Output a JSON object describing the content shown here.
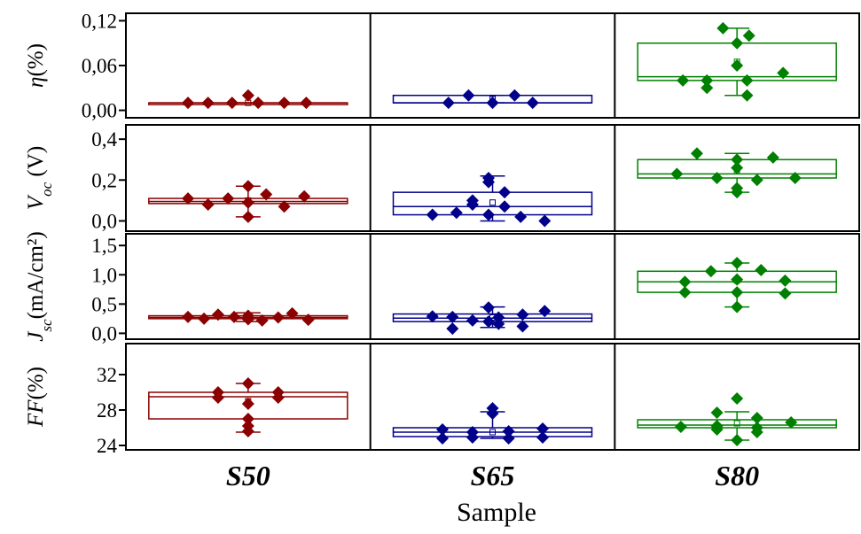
{
  "chart_data": {
    "type": "box",
    "categories": [
      "S50",
      "S65",
      "S80"
    ],
    "xlabel": "Sample",
    "colors": {
      "S50": "#8b0000",
      "S65": "#00008b",
      "S80": "#008000"
    },
    "panels": [
      {
        "key": "eta",
        "ylabel": {
          "main": "η",
          "unit": "(%)",
          "subscript": ""
        },
        "ylim": [
          -0.01,
          0.13
        ],
        "ticks": [
          0.0,
          0.06,
          0.12
        ],
        "tick_labels": [
          "0,00",
          "0,06",
          "0,12"
        ],
        "groups": [
          {
            "category": "S50",
            "q1": 0.01,
            "median": 0.01,
            "q3": 0.01,
            "mean": 0.01,
            "whisker_low": 0.01,
            "whisker_high": 0.01,
            "points": [
              [
                -0.3,
                0.01
              ],
              [
                -0.2,
                0.01
              ],
              [
                -0.08,
                0.01
              ],
              [
                0.0,
                0.02
              ],
              [
                0.05,
                0.01
              ],
              [
                0.18,
                0.01
              ],
              [
                0.29,
                0.01
              ]
            ]
          },
          {
            "category": "S65",
            "q1": 0.01,
            "median": 0.01,
            "q3": 0.02,
            "mean": 0.015,
            "whisker_low": 0.01,
            "whisker_high": 0.02,
            "points": [
              [
                -0.22,
                0.01
              ],
              [
                -0.12,
                0.02
              ],
              [
                0.0,
                0.01
              ],
              [
                0.11,
                0.02
              ],
              [
                0.2,
                0.01
              ]
            ]
          },
          {
            "category": "S80",
            "q1": 0.04,
            "median": 0.045,
            "q3": 0.09,
            "mean": 0.065,
            "whisker_low": 0.02,
            "whisker_high": 0.11,
            "points": [
              [
                -0.27,
                0.04
              ],
              [
                -0.15,
                0.03
              ],
              [
                -0.15,
                0.04
              ],
              [
                -0.07,
                0.11
              ],
              [
                0.0,
                0.06
              ],
              [
                0.0,
                0.09
              ],
              [
                0.05,
                0.02
              ],
              [
                0.05,
                0.04
              ],
              [
                0.06,
                0.1
              ],
              [
                0.23,
                0.05
              ]
            ]
          }
        ]
      },
      {
        "key": "voc",
        "ylabel": {
          "main": "V",
          "unit": " (V)",
          "subscript": "oc"
        },
        "ylim": [
          -0.05,
          0.47
        ],
        "ticks": [
          0.0,
          0.2,
          0.4
        ],
        "tick_labels": [
          "0,0",
          "0,2",
          "0,4"
        ],
        "groups": [
          {
            "category": "S50",
            "q1": 0.085,
            "median": 0.095,
            "q3": 0.11,
            "mean": 0.1,
            "whisker_low": 0.02,
            "whisker_high": 0.17,
            "points": [
              [
                -0.3,
                0.11
              ],
              [
                -0.2,
                0.08
              ],
              [
                -0.1,
                0.11
              ],
              [
                0.0,
                0.17
              ],
              [
                0.0,
                0.09
              ],
              [
                0.0,
                0.02
              ],
              [
                0.09,
                0.13
              ],
              [
                0.18,
                0.07
              ],
              [
                0.28,
                0.12
              ]
            ]
          },
          {
            "category": "S65",
            "q1": 0.03,
            "median": 0.07,
            "q3": 0.14,
            "mean": 0.09,
            "whisker_low": 0.0,
            "whisker_high": 0.22,
            "points": [
              [
                -0.3,
                0.03
              ],
              [
                -0.18,
                0.04
              ],
              [
                -0.1,
                0.1
              ],
              [
                -0.1,
                0.08
              ],
              [
                -0.02,
                0.21
              ],
              [
                -0.02,
                0.19
              ],
              [
                -0.02,
                0.03
              ],
              [
                0.06,
                0.14
              ],
              [
                0.06,
                0.07
              ],
              [
                0.14,
                0.02
              ],
              [
                0.26,
                0.0
              ]
            ]
          },
          {
            "category": "S80",
            "q1": 0.21,
            "median": 0.23,
            "q3": 0.3,
            "mean": 0.25,
            "whisker_low": 0.14,
            "whisker_high": 0.33,
            "points": [
              [
                -0.3,
                0.23
              ],
              [
                -0.2,
                0.33
              ],
              [
                -0.1,
                0.21
              ],
              [
                0.0,
                0.3
              ],
              [
                0.0,
                0.26
              ],
              [
                0.0,
                0.16
              ],
              [
                0.0,
                0.14
              ],
              [
                0.1,
                0.2
              ],
              [
                0.18,
                0.31
              ],
              [
                0.29,
                0.21
              ]
            ]
          }
        ]
      },
      {
        "key": "jsc",
        "ylabel": {
          "main": "J",
          "unit": "(mA/cm²)",
          "subscript": "sc"
        },
        "ylim": [
          -0.1,
          1.7
        ],
        "ticks": [
          0.0,
          0.5,
          1.0,
          1.5
        ],
        "tick_labels": [
          "0,0",
          "0,5",
          "1,0",
          "1,5"
        ],
        "groups": [
          {
            "category": "S50",
            "q1": 0.25,
            "median": 0.27,
            "q3": 0.3,
            "mean": 0.28,
            "whisker_low": 0.2,
            "whisker_high": 0.35,
            "points": [
              [
                -0.3,
                0.28
              ],
              [
                -0.22,
                0.25
              ],
              [
                -0.15,
                0.32
              ],
              [
                -0.07,
                0.28
              ],
              [
                0.0,
                0.3
              ],
              [
                0.0,
                0.24
              ],
              [
                0.07,
                0.22
              ],
              [
                0.15,
                0.27
              ],
              [
                0.22,
                0.34
              ],
              [
                0.3,
                0.23
              ]
            ]
          },
          {
            "category": "S65",
            "q1": 0.2,
            "median": 0.26,
            "q3": 0.33,
            "mean": 0.27,
            "whisker_low": 0.1,
            "whisker_high": 0.45,
            "points": [
              [
                -0.3,
                0.29
              ],
              [
                -0.2,
                0.28
              ],
              [
                -0.2,
                0.08
              ],
              [
                -0.1,
                0.22
              ],
              [
                -0.02,
                0.44
              ],
              [
                -0.02,
                0.2
              ],
              [
                0.03,
                0.27
              ],
              [
                0.03,
                0.16
              ],
              [
                0.15,
                0.32
              ],
              [
                0.15,
                0.12
              ],
              [
                0.26,
                0.38
              ]
            ]
          },
          {
            "category": "S80",
            "q1": 0.7,
            "median": 0.88,
            "q3": 1.06,
            "mean": 0.9,
            "whisker_low": 0.45,
            "whisker_high": 1.2,
            "points": [
              [
                -0.26,
                0.88
              ],
              [
                -0.26,
                0.7
              ],
              [
                -0.13,
                1.06
              ],
              [
                0.0,
                1.2
              ],
              [
                0.0,
                0.92
              ],
              [
                0.0,
                0.7
              ],
              [
                0.0,
                0.45
              ],
              [
                0.12,
                1.08
              ],
              [
                0.24,
                0.9
              ],
              [
                0.24,
                0.68
              ]
            ]
          }
        ]
      },
      {
        "key": "ff",
        "ylabel": {
          "main": "FF",
          "unit": "(%)",
          "subscript": ""
        },
        "ylim": [
          23.5,
          35.5
        ],
        "ticks": [
          24,
          28,
          32
        ],
        "tick_labels": [
          "24",
          "28",
          "32"
        ],
        "groups": [
          {
            "category": "S50",
            "q1": 27,
            "median": 29.5,
            "q3": 30,
            "mean": 29,
            "whisker_low": 25.5,
            "whisker_high": 31,
            "points": [
              [
                -0.15,
                30
              ],
              [
                -0.15,
                29.4
              ],
              [
                0.0,
                31
              ],
              [
                0.0,
                28.7
              ],
              [
                0.0,
                27
              ],
              [
                0.0,
                26.2
              ],
              [
                0.0,
                25.6
              ],
              [
                0.15,
                30
              ],
              [
                0.15,
                29.4
              ]
            ]
          },
          {
            "category": "S65",
            "q1": 25,
            "median": 25.5,
            "q3": 26,
            "mean": 25.5,
            "whisker_low": 24.8,
            "whisker_high": 27.8,
            "points": [
              [
                -0.25,
                25.8
              ],
              [
                -0.25,
                24.8
              ],
              [
                -0.1,
                25.5
              ],
              [
                -0.1,
                24.9
              ],
              [
                0.0,
                28.2
              ],
              [
                0.0,
                27.6
              ],
              [
                0.08,
                25.6
              ],
              [
                0.08,
                24.8
              ],
              [
                0.25,
                25.9
              ],
              [
                0.25,
                24.9
              ]
            ]
          },
          {
            "category": "S80",
            "q1": 26,
            "median": 26.3,
            "q3": 26.9,
            "mean": 26.5,
            "whisker_low": 24.6,
            "whisker_high": 27.8,
            "points": [
              [
                -0.28,
                26.1
              ],
              [
                -0.1,
                27.7
              ],
              [
                -0.1,
                26.2
              ],
              [
                -0.1,
                25.8
              ],
              [
                0.0,
                29.3
              ],
              [
                0.0,
                24.6
              ],
              [
                0.1,
                27.1
              ],
              [
                0.1,
                26.0
              ],
              [
                0.1,
                25.5
              ],
              [
                0.27,
                26.6
              ]
            ]
          }
        ]
      }
    ]
  }
}
